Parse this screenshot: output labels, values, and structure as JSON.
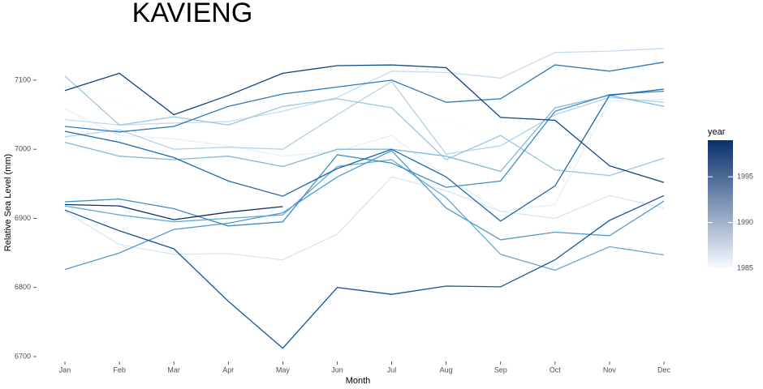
{
  "chart_data": {
    "type": "line",
    "title": "KAVIENG",
    "x_label": "Month",
    "y_label": "Relative Sea Level (mm)",
    "categories": [
      "Jan",
      "Feb",
      "Mar",
      "Apr",
      "May",
      "Jun",
      "Jul",
      "Aug",
      "Sep",
      "Oct",
      "Nov",
      "Dec"
    ],
    "ylim": [
      6690,
      7155
    ],
    "yticks": [
      6700,
      6800,
      6900,
      7000,
      7100
    ],
    "grid": false,
    "series": [
      {
        "color": "#f7fbff",
        "values": [
          7090,
          7068,
          7030,
          7030,
          7070,
          7072,
          7040,
          7045,
          7000,
          7082,
          7108,
          7095
        ]
      },
      {
        "color": "#e6f0fa",
        "values": [
          7058,
          7020,
          7015,
          7005,
          6990,
          6997,
          7020,
          6960,
          6910,
          6920,
          7070,
          7072
        ]
      },
      {
        "color": "#d6e6f4",
        "values": [
          6910,
          6862,
          6848,
          6849,
          6840,
          6877,
          6960,
          6940,
          6910,
          6900,
          6933,
          6915
        ]
      },
      {
        "color": "#c6dbef",
        "values": [
          7043,
          7035,
          7038,
          7040,
          7055,
          7075,
          7113,
          7111,
          7103,
          7140,
          7142,
          7146
        ]
      },
      {
        "color": "#b0d2e8",
        "values": [
          7018,
          7028,
          7000,
          7003,
          7000,
          7050,
          7098,
          6993,
          7005,
          7050,
          7075,
          7068
        ]
      },
      {
        "color": "#9ac8e0",
        "values": [
          7106,
          7035,
          7047,
          7035,
          7062,
          7073,
          7060,
          6985,
          7020,
          6970,
          6962,
          6987
        ]
      },
      {
        "color": "#80b9da",
        "values": [
          7010,
          6990,
          6985,
          6990,
          6975,
          7000,
          7000,
          6990,
          6968,
          7060,
          7078,
          7062
        ]
      },
      {
        "color": "#66aad4",
        "values": [
          6918,
          6905,
          6895,
          6900,
          6905,
          6975,
          6985,
          6930,
          6848,
          6825,
          6859,
          6847
        ]
      },
      {
        "color": "#519ccc",
        "values": [
          6826,
          6850,
          6884,
          6893,
          6908,
          6960,
          6998,
          6915,
          6869,
          6880,
          6875,
          6925
        ]
      },
      {
        "color": "#3d8dc3",
        "values": [
          6924,
          6928,
          6914,
          6889,
          6895,
          6992,
          6980,
          6945,
          6954,
          7055,
          7079,
          7084
        ]
      },
      {
        "color": "#2a7ab9",
        "values": [
          7033,
          7025,
          7033,
          7062,
          7080,
          7090,
          7100,
          7068,
          7073,
          7122,
          7113,
          7126
        ]
      },
      {
        "color": "#1c68ae",
        "values": [
          7026,
          7010,
          6988,
          6954,
          6932,
          6972,
          7000,
          6960,
          6896,
          6947,
          7078,
          7087
        ]
      },
      {
        "color": "#10569b",
        "values": [
          6912,
          6882,
          6856,
          6780,
          6712,
          6800,
          6790,
          6802,
          6801,
          6840,
          6897,
          6933
        ]
      },
      {
        "color": "#0a4485",
        "values": [
          7085,
          7110,
          7050,
          7078,
          7110,
          7121,
          7122,
          7118,
          7046,
          7042,
          6976,
          6952
        ]
      },
      {
        "color": "#08306b",
        "values": [
          6920,
          6918,
          6898,
          6909,
          6917,
          null,
          null,
          null,
          null,
          null,
          null,
          null
        ]
      }
    ],
    "colorbar": {
      "title": "year",
      "lim": [
        1985,
        1999
      ],
      "ticks": [
        1985,
        1990,
        1995
      ],
      "colors": [
        "#f7fbff",
        "#08306b"
      ]
    }
  }
}
